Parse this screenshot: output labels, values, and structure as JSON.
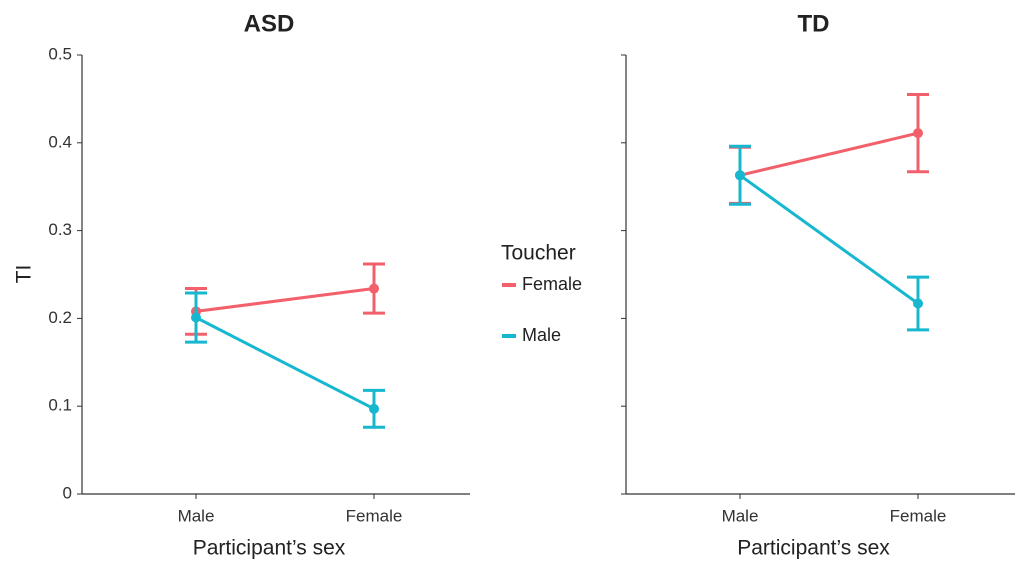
{
  "chart_data": [
    {
      "type": "line",
      "title": "ASD",
      "xlabel": "Participant’s sex",
      "ylabel": "TI",
      "legend_title": "Toucher",
      "categories": [
        "Male",
        "Female"
      ],
      "series": [
        {
          "name": "Female",
          "color": "#f2606b",
          "values": [
            0.208,
            0.234
          ],
          "errors": [
            0.026,
            0.028
          ]
        },
        {
          "name": "Male",
          "color": "#17b8cf",
          "values": [
            0.201,
            0.097
          ],
          "errors": [
            0.028,
            0.021
          ]
        }
      ],
      "ylim": [
        0,
        0.5
      ],
      "yticks": [
        0,
        0.1,
        0.2,
        0.3,
        0.4,
        0.5
      ]
    },
    {
      "type": "line",
      "title": "TD",
      "xlabel": "Participant’s sex",
      "categories": [
        "Male",
        "Female"
      ],
      "series": [
        {
          "name": "Female",
          "color": "#f2606b",
          "values": [
            0.363,
            0.411
          ],
          "errors": [
            0.032,
            0.044
          ]
        },
        {
          "name": "Male",
          "color": "#17b8cf",
          "values": [
            0.363,
            0.217
          ],
          "errors": [
            0.033,
            0.03
          ]
        }
      ],
      "ylim": [
        0,
        0.5
      ],
      "yticks": [
        0,
        0.1,
        0.2,
        0.3,
        0.4,
        0.5
      ]
    }
  ]
}
